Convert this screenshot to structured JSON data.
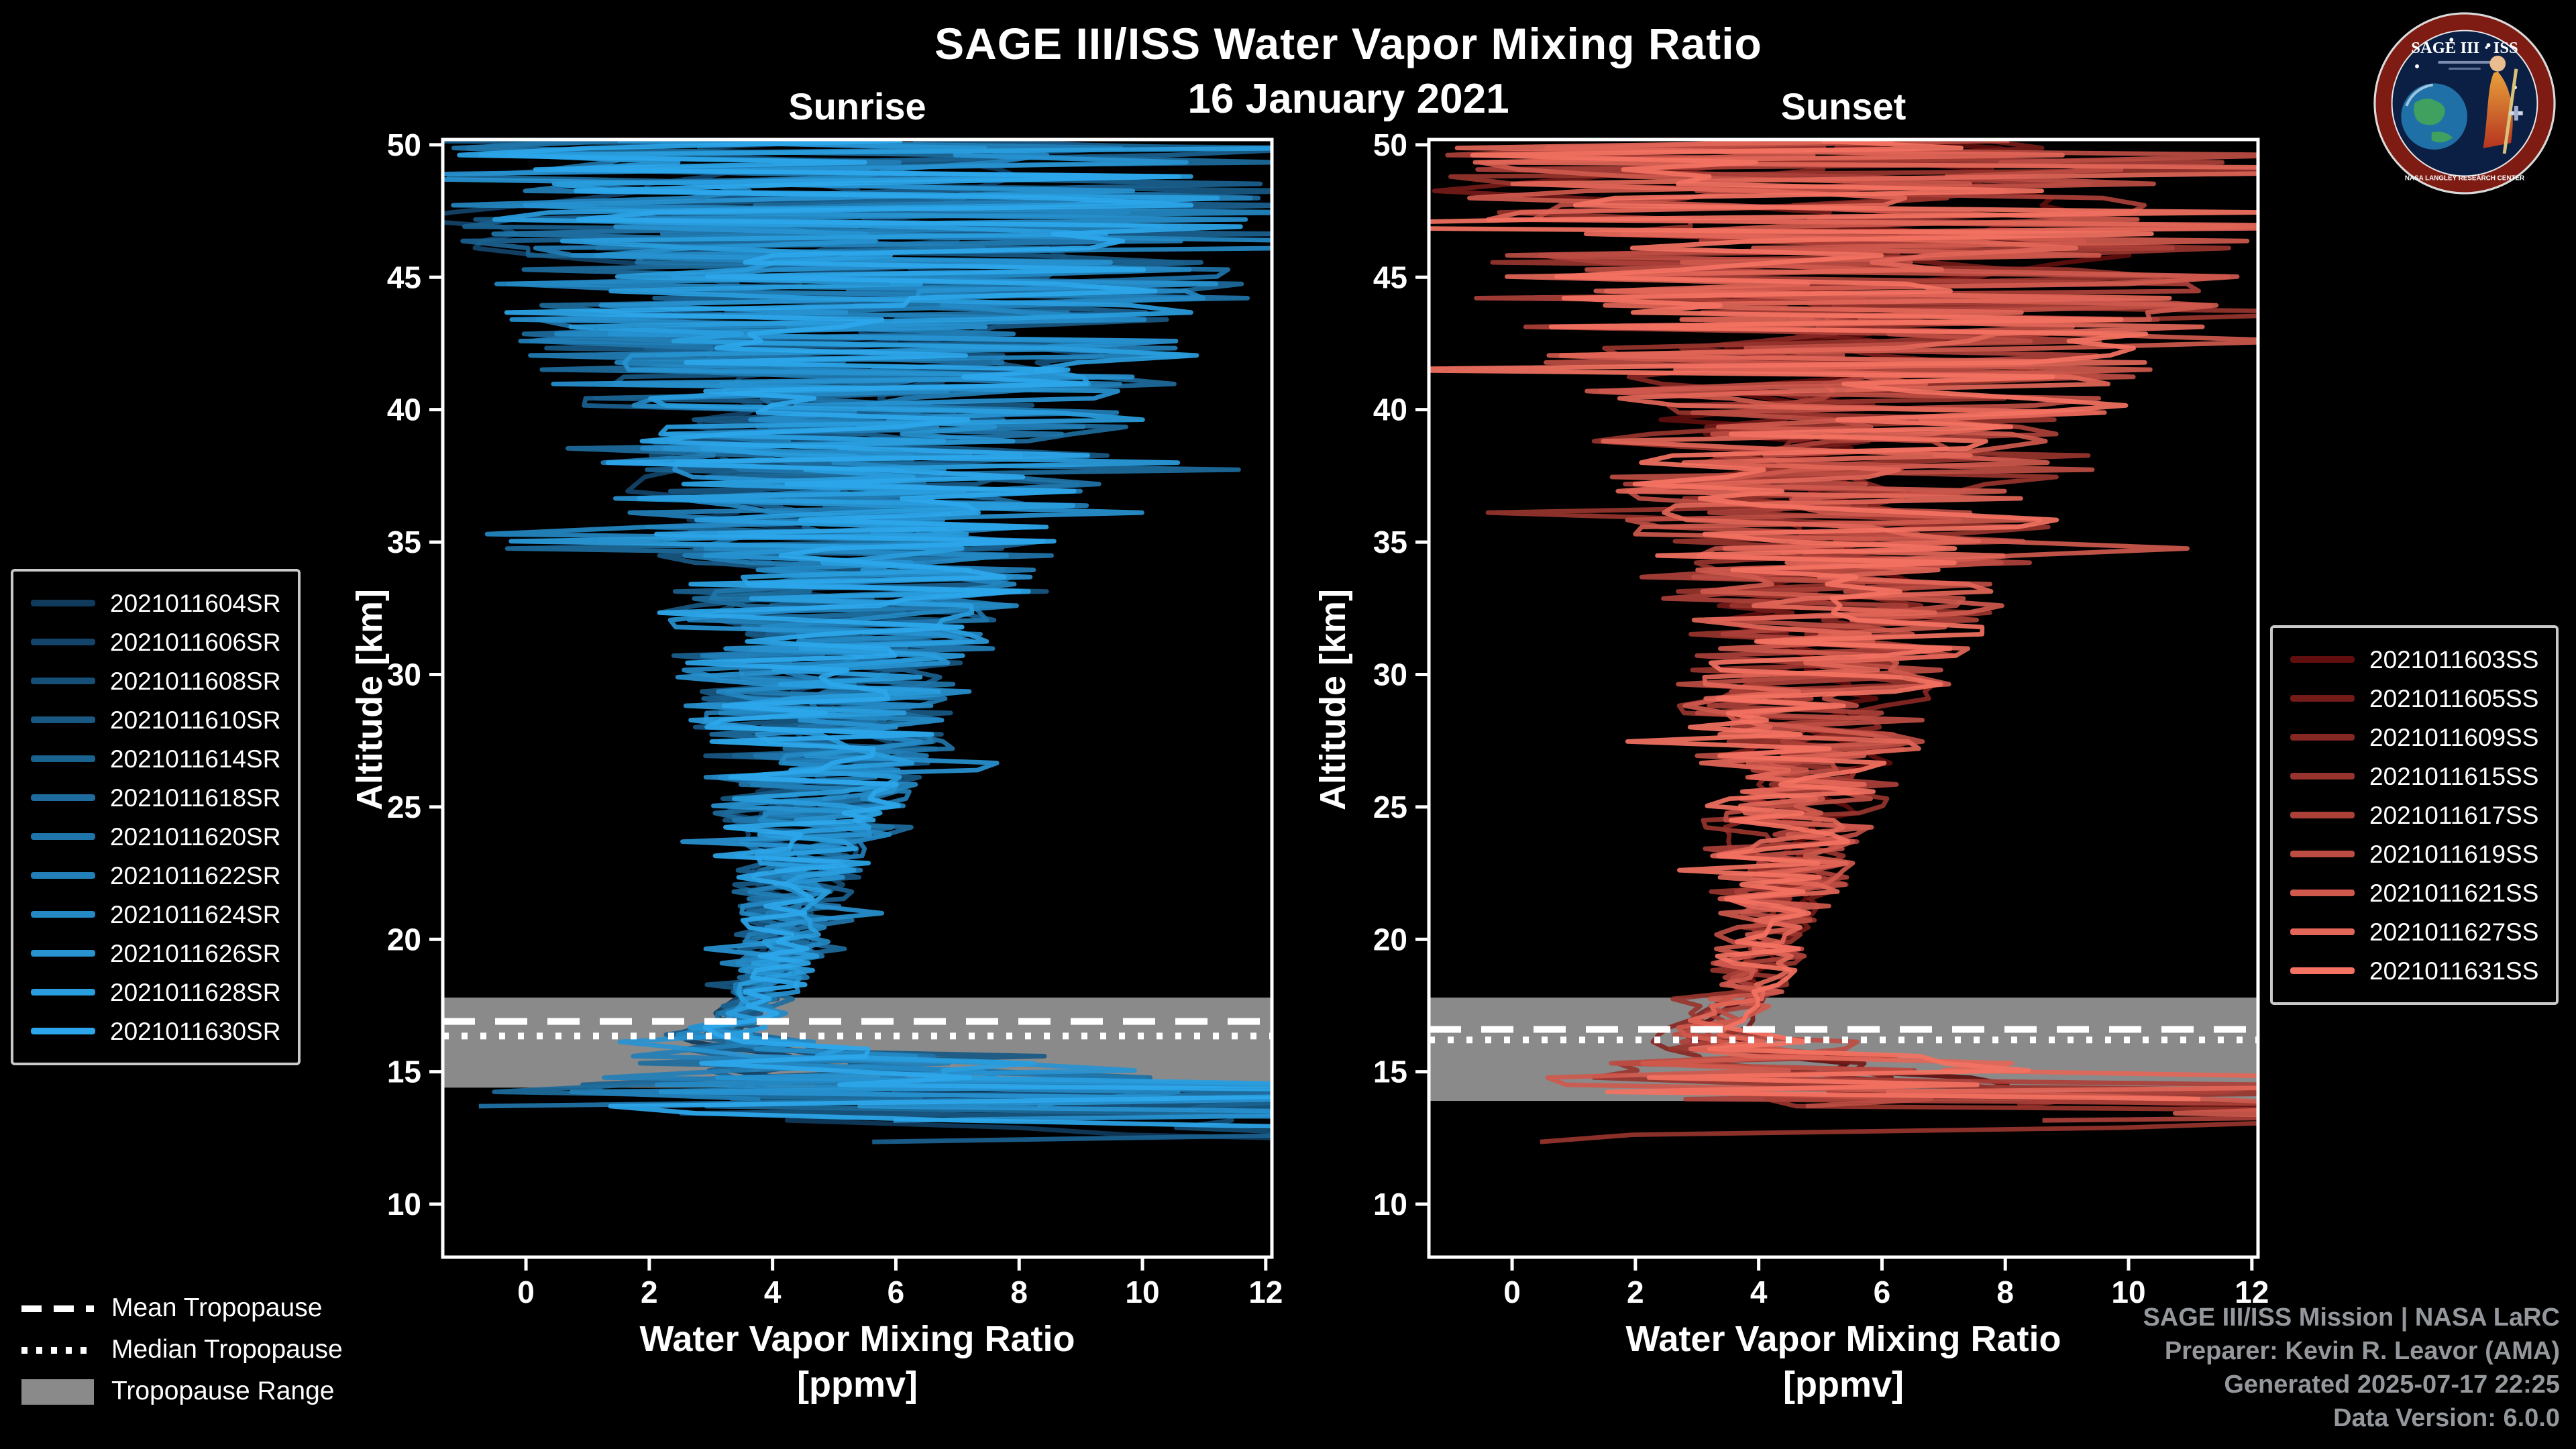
{
  "header": {
    "title": "SAGE III/ISS Water Vapor Mixing Ratio",
    "date": "16 January 2021"
  },
  "logo": {
    "title": "SAGE III · ISS",
    "ring_text": "NASA LANGLEY RESEARCH CENTER"
  },
  "panels": [
    {
      "title": "Sunrise",
      "ylabel": "Altitude [km]",
      "xlabel_line1": "Water Vapor Mixing Ratio",
      "xlabel_line2": "[ppmv]"
    },
    {
      "title": "Sunset",
      "ylabel": "Altitude [km]",
      "xlabel_line1": "Water Vapor Mixing Ratio",
      "xlabel_line2": "[ppmv]"
    }
  ],
  "tropopause_legend": [
    {
      "label": "Mean Tropopause",
      "style": "dashed"
    },
    {
      "label": "Median Tropopause",
      "style": "dotted"
    },
    {
      "label": "Tropopause Range",
      "style": "band"
    }
  ],
  "credits": [
    "SAGE III/ISS Mission | NASA LaRC",
    "Preparer: Kevin R. Leavor (AMA)",
    "Generated 2025-07-17 22:25",
    "Data Version: 6.0.0"
  ],
  "colors": {
    "background": "#000000",
    "axis": "#ffffff",
    "tropopause_band": "#8a8a8a",
    "credits_text": "#94989c",
    "sunrise_bright": "#2ca7eb",
    "sunset_bright": "#f47262"
  },
  "chart_data": [
    {
      "type": "line",
      "title": "Sunrise",
      "xlabel": "Water Vapor Mixing Ratio [ppmv]",
      "ylabel": "Altitude [km]",
      "xlim": [
        -1.35,
        12.1
      ],
      "ylim": [
        8,
        50.2
      ],
      "xticks": [
        0,
        2,
        4,
        6,
        8,
        10,
        12
      ],
      "yticks": [
        10,
        15,
        20,
        25,
        30,
        35,
        40,
        45,
        50
      ],
      "grid": false,
      "legend_position": "left",
      "series": [
        {
          "label": "2021011604SR",
          "color": "#103a5c"
        },
        {
          "label": "2021011606SR",
          "color": "#134469"
        },
        {
          "label": "2021011608SR",
          "color": "#154e76"
        },
        {
          "label": "2021011610SR",
          "color": "#185883"
        },
        {
          "label": "2021011614SR",
          "color": "#1a6290"
        },
        {
          "label": "2021011618SR",
          "color": "#1d6c9d"
        },
        {
          "label": "2021011620SR",
          "color": "#1f75aa"
        },
        {
          "label": "2021011622SR",
          "color": "#227fb7"
        },
        {
          "label": "2021011624SR",
          "color": "#2489c4"
        },
        {
          "label": "2021011626SR",
          "color": "#2793d1"
        },
        {
          "label": "2021011628SR",
          "color": "#299dde"
        },
        {
          "label": "2021011630SR",
          "color": "#2ca7eb"
        }
      ],
      "profile_estimate": {
        "altitude_km": [
          11.8,
          13,
          14,
          15,
          15.8,
          16.4,
          17,
          18,
          20,
          22,
          25,
          28,
          32,
          36,
          40,
          45,
          50.2
        ],
        "mean_ppmv": [
          15,
          12,
          8.5,
          5.5,
          4.1,
          3.1,
          3.5,
          3.9,
          4.2,
          4.4,
          4.6,
          4.8,
          5.0,
          5.3,
          5.5,
          5.7,
          5.9
        ],
        "spread_halfwidth_ppmv": [
          14,
          12,
          9,
          4.5,
          1.6,
          0.8,
          0.5,
          0.55,
          0.7,
          1.0,
          1.5,
          2.0,
          2.7,
          3.6,
          4.6,
          6.2,
          7.2
        ]
      },
      "tropopause": {
        "mean_km": 16.9,
        "median_km": 16.35,
        "range_km": [
          14.4,
          17.8
        ]
      }
    },
    {
      "type": "line",
      "title": "Sunset",
      "xlabel": "Water Vapor Mixing Ratio [ppmv]",
      "ylabel": "Altitude [km]",
      "xlim": [
        -1.35,
        12.1
      ],
      "ylim": [
        8,
        50.2
      ],
      "xticks": [
        0,
        2,
        4,
        6,
        8,
        10,
        12
      ],
      "yticks": [
        10,
        15,
        20,
        25,
        30,
        35,
        40,
        45,
        50
      ],
      "grid": false,
      "legend_position": "right",
      "series": [
        {
          "label": "2021011603SS",
          "color": "#600e0e"
        },
        {
          "label": "2021011605SS",
          "color": "#731b19"
        },
        {
          "label": "2021011609SS",
          "color": "#852723"
        },
        {
          "label": "2021011615SS",
          "color": "#98342e"
        },
        {
          "label": "2021011617SS",
          "color": "#aa4038"
        },
        {
          "label": "2021011619SS",
          "color": "#bd4d43"
        },
        {
          "label": "2021011621SS",
          "color": "#cf594d"
        },
        {
          "label": "2021011627SS",
          "color": "#e26658"
        },
        {
          "label": "2021011631SS",
          "color": "#f47262"
        }
      ],
      "profile_estimate": {
        "altitude_km": [
          11.8,
          13,
          14,
          15,
          15.8,
          16.4,
          17,
          18,
          20,
          22,
          25,
          28,
          32,
          36,
          40,
          45,
          50.2
        ],
        "mean_ppmv": [
          15,
          12,
          8.5,
          5.5,
          4.2,
          3.2,
          3.4,
          3.8,
          4.1,
          4.3,
          4.6,
          4.8,
          5.1,
          5.3,
          5.6,
          5.8,
          6.0
        ],
        "spread_halfwidth_ppmv": [
          14,
          12,
          9,
          4.5,
          1.6,
          0.9,
          0.55,
          0.6,
          0.75,
          1.05,
          1.5,
          2.0,
          2.6,
          3.4,
          4.4,
          5.8,
          7.0
        ]
      },
      "tropopause": {
        "mean_km": 16.6,
        "median_km": 16.2,
        "range_km": [
          13.9,
          17.8
        ]
      }
    }
  ]
}
